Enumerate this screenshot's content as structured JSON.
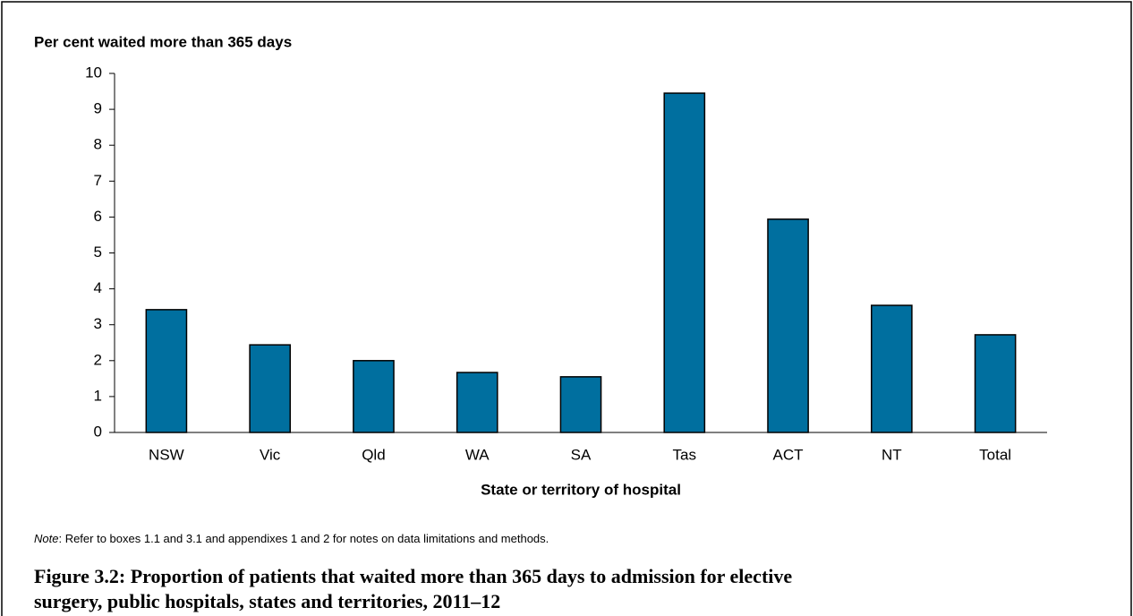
{
  "chart_data": {
    "type": "bar",
    "ylabel": "Per cent waited more than 365 days",
    "xlabel": "State or territory of hospital",
    "categories": [
      "NSW",
      "Vic",
      "Qld",
      "WA",
      "SA",
      "Tas",
      "ACT",
      "NT",
      "Total"
    ],
    "values": [
      3.42,
      2.44,
      2.0,
      1.67,
      1.55,
      9.45,
      5.94,
      3.54,
      2.72
    ],
    "color": "#006f9f",
    "ylim": [
      0,
      10
    ],
    "yticks": [
      0,
      1,
      2,
      3,
      4,
      5,
      6,
      7,
      8,
      9,
      10
    ],
    "grid": false
  },
  "note": {
    "label": "Note",
    "text": ": Refer to boxes 1.1 and 3.1 and appendixes 1 and 2 for notes on data limitations and methods."
  },
  "caption": "Figure 3.2: Proportion of patients that waited more than 365 days to admission for elective surgery, public hospitals, states and territories, 2011–12"
}
